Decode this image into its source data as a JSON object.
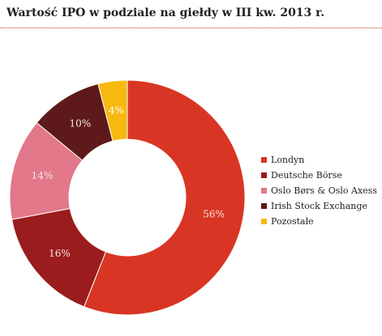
{
  "title": "Wartość IPO w podziale na giełdy w III kw. 2013 r.",
  "chart_data": {
    "type": "pie",
    "donut": true,
    "title": "Wartość IPO w podziale na giełdy w III kw. 2013 r.",
    "legend_position": "right",
    "slices": [
      {
        "name": "Londyn",
        "value": 56,
        "label": "56%",
        "color": "#d93524"
      },
      {
        "name": "Deutsche Börse",
        "value": 16,
        "label": "16%",
        "color": "#9b1c1c"
      },
      {
        "name": "Oslo Børs & Oslo Axess",
        "value": 14,
        "label": "14%",
        "color": "#e27889"
      },
      {
        "name": "Irish Stock Exchange",
        "value": 10,
        "label": "10%",
        "color": "#5e1a1a"
      },
      {
        "name": "Pozostałe",
        "value": 4,
        "label": "4%",
        "color": "#f7b80f"
      }
    ]
  }
}
